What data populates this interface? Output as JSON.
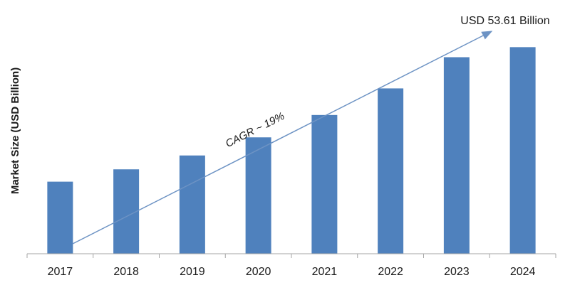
{
  "chart_data": {
    "type": "bar",
    "categories": [
      "2017",
      "2018",
      "2019",
      "2020",
      "2021",
      "2022",
      "2023",
      "2024"
    ],
    "values": [
      18.7,
      21.9,
      25.5,
      30.2,
      36.0,
      42.9,
      51.0,
      53.61
    ],
    "title": "",
    "xlabel": "",
    "ylabel": "Market Size (USD Billion)",
    "ylim": [
      0,
      64
    ],
    "grid": false,
    "legend": "none",
    "bar_color": "#4f81bd",
    "annotations": {
      "end_value": "USD 53.61 Billion",
      "cagr": "CAGR ~ 19%"
    }
  }
}
